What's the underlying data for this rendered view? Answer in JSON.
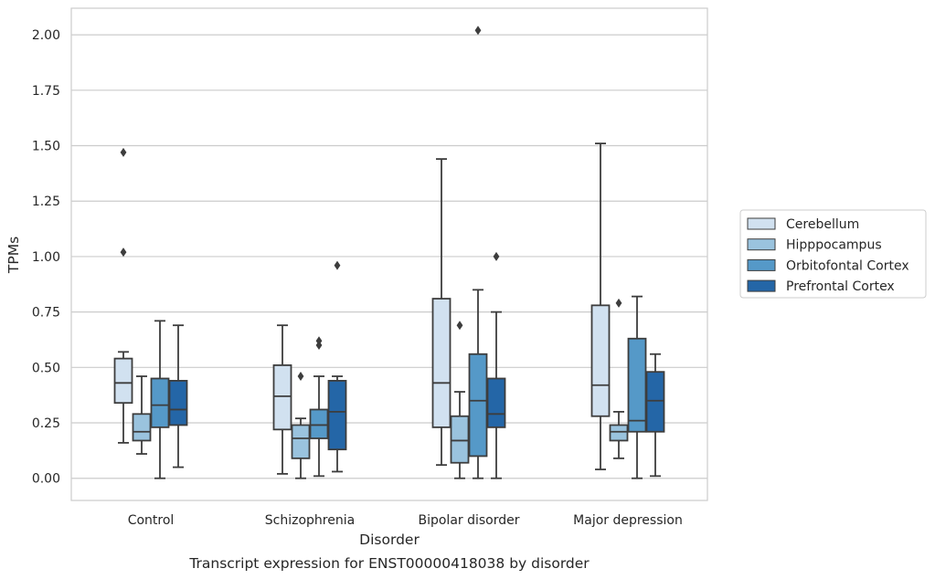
{
  "chart_data": {
    "type": "box",
    "title": "",
    "caption": "Transcript expression for ENST00000418038 by disorder",
    "xlabel": "Disorder",
    "ylabel": "TPMs",
    "ylim": [
      -0.1,
      2.12
    ],
    "yticks": [
      "0.00",
      "0.25",
      "0.50",
      "0.75",
      "1.00",
      "1.25",
      "1.50",
      "1.75",
      "2.00"
    ],
    "grid": "horizontal",
    "legend_position": "right",
    "categories": [
      "Control",
      "Schizophrenia",
      "Bipolar disorder",
      "Major depression"
    ],
    "series": [
      {
        "name": "Cerebellum",
        "color": "#d1e1f0",
        "boxes": [
          {
            "whisker_low": 0.16,
            "q1": 0.34,
            "median": 0.43,
            "q3": 0.54,
            "whisker_high": 0.57,
            "outliers": [
              1.02,
              1.47
            ]
          },
          {
            "whisker_low": 0.02,
            "q1": 0.22,
            "median": 0.37,
            "q3": 0.51,
            "whisker_high": 0.69,
            "outliers": []
          },
          {
            "whisker_low": 0.06,
            "q1": 0.23,
            "median": 0.43,
            "q3": 0.81,
            "whisker_high": 1.44,
            "outliers": []
          },
          {
            "whisker_low": 0.04,
            "q1": 0.28,
            "median": 0.42,
            "q3": 0.78,
            "whisker_high": 1.51,
            "outliers": []
          }
        ]
      },
      {
        "name": "Hipppocampus",
        "color": "#9ac3de",
        "boxes": [
          {
            "whisker_low": 0.11,
            "q1": 0.17,
            "median": 0.21,
            "q3": 0.29,
            "whisker_high": 0.46,
            "outliers": []
          },
          {
            "whisker_low": 0.0,
            "q1": 0.09,
            "median": 0.18,
            "q3": 0.24,
            "whisker_high": 0.27,
            "outliers": [
              0.46
            ]
          },
          {
            "whisker_low": 0.0,
            "q1": 0.07,
            "median": 0.17,
            "q3": 0.28,
            "whisker_high": 0.39,
            "outliers": [
              0.69
            ]
          },
          {
            "whisker_low": 0.09,
            "q1": 0.17,
            "median": 0.21,
            "q3": 0.24,
            "whisker_high": 0.3,
            "outliers": [
              0.79
            ]
          }
        ]
      },
      {
        "name": "Orbitofontal Cortex",
        "color": "#5599c8",
        "boxes": [
          {
            "whisker_low": 0.0,
            "q1": 0.23,
            "median": 0.33,
            "q3": 0.45,
            "whisker_high": 0.71,
            "outliers": []
          },
          {
            "whisker_low": 0.01,
            "q1": 0.18,
            "median": 0.24,
            "q3": 0.31,
            "whisker_high": 0.46,
            "outliers": [
              0.6,
              0.62
            ]
          },
          {
            "whisker_low": 0.0,
            "q1": 0.1,
            "median": 0.35,
            "q3": 0.56,
            "whisker_high": 0.85,
            "outliers": [
              2.02
            ]
          },
          {
            "whisker_low": 0.0,
            "q1": 0.21,
            "median": 0.26,
            "q3": 0.63,
            "whisker_high": 0.82,
            "outliers": []
          }
        ]
      },
      {
        "name": "Prefrontal Cortex",
        "color": "#2466a7",
        "boxes": [
          {
            "whisker_low": 0.05,
            "q1": 0.24,
            "median": 0.31,
            "q3": 0.44,
            "whisker_high": 0.69,
            "outliers": []
          },
          {
            "whisker_low": 0.03,
            "q1": 0.13,
            "median": 0.3,
            "q3": 0.44,
            "whisker_high": 0.46,
            "outliers": [
              0.96
            ]
          },
          {
            "whisker_low": 0.0,
            "q1": 0.23,
            "median": 0.29,
            "q3": 0.45,
            "whisker_high": 0.75,
            "outliers": [
              1.0
            ]
          },
          {
            "whisker_low": 0.01,
            "q1": 0.21,
            "median": 0.35,
            "q3": 0.48,
            "whisker_high": 0.56,
            "outliers": []
          }
        ]
      }
    ]
  }
}
